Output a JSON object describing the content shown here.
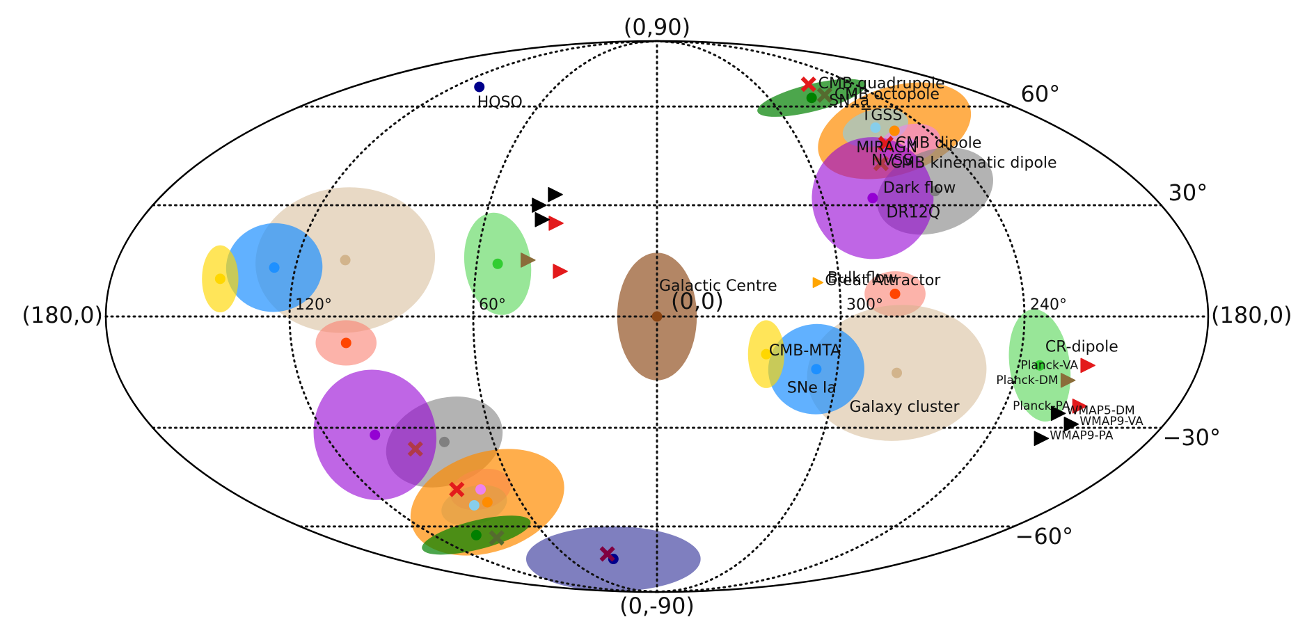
{
  "chart_data": {
    "type": "scatter",
    "projection": "mollweide",
    "coordinate_system": "galactic (l, b) degrees",
    "grid": true,
    "meridian_labels": [
      "240°",
      "300°",
      "(0,0)",
      "60°",
      "120°"
    ],
    "parallel_labels": [
      "60°",
      "30°",
      "−30°",
      "−60°"
    ],
    "edge_labels": {
      "top": "(0,90)",
      "bottom": "(0,-90)",
      "left": "(180,0)",
      "right": "(180,0)"
    },
    "regions": [
      {
        "id": "miragn",
        "label": "MIRAGN",
        "color": "#ff8c00",
        "l": 255,
        "b": 52,
        "rl": 35,
        "rb": 15,
        "rot": -18,
        "alpha": 0.7
      },
      {
        "id": "sn1a-n",
        "label": "SN1a",
        "color": "#008000",
        "l": 277,
        "b": 63,
        "rl": 30,
        "rb": 5,
        "rot": -14,
        "alpha": 0.7
      },
      {
        "id": "tgss-n",
        "label": "TGSS",
        "color": "#87ceeb",
        "l": 262,
        "b": 53,
        "rl": 15,
        "rb": 6,
        "rot": -14,
        "alpha": 0.6
      },
      {
        "id": "nvss-n",
        "label": "NVSS",
        "color": "#ee82ee",
        "l": 254,
        "b": 48,
        "rl": 13,
        "rb": 6,
        "rot": -14,
        "alpha": 0.6
      },
      {
        "id": "dr12q-n",
        "label": "DR12Q",
        "color": "#808080",
        "l": 258,
        "b": 34,
        "rl": 22,
        "rb": 12,
        "rot": -20,
        "alpha": 0.6
      },
      {
        "id": "darkflow-n",
        "label": "Dark flow",
        "color": "#9400d3",
        "l": 282,
        "b": 32,
        "rl": 22,
        "rb": 18,
        "rot": -20,
        "alpha": 0.6
      },
      {
        "id": "bulkflow",
        "label": "Bulk flow",
        "color": "#fa8072",
        "l": 282,
        "b": 6,
        "rl": 10,
        "rb": 6,
        "rot": 0,
        "alpha": 0.6
      },
      {
        "id": "cr-dipole",
        "label": "CR-dipole",
        "color": "#32cd32",
        "l": 233,
        "b": -13,
        "rl": 10,
        "rb": 15,
        "rot": -8,
        "alpha": 0.5
      },
      {
        "id": "galaxy-cluster",
        "label": "Galaxy cluster",
        "color": "#d2b48c",
        "l": 280,
        "b": -15,
        "rl": 30,
        "rb": 18,
        "rot": -6,
        "alpha": 0.5
      },
      {
        "id": "sne-ia",
        "label": "SNe Ia",
        "color": "#1e90ff",
        "l": 307,
        "b": -14,
        "rl": 16,
        "rb": 12,
        "rot": -6,
        "alpha": 0.7
      },
      {
        "id": "cmb-mta",
        "label": "CMB-MTA",
        "color": "#ffd700",
        "l": 324,
        "b": -10,
        "rl": 6,
        "rb": 9,
        "rot": 0,
        "alpha": 0.65
      },
      {
        "id": "galactic-centre",
        "label": "Galactic Centre",
        "color": "#8b4513",
        "l": 0,
        "b": 0,
        "rl": 13,
        "rb": 17,
        "rot": 0,
        "alpha": 0.65
      },
      {
        "id": "cr-dipole-s",
        "label": "",
        "color": "#32cd32",
        "l": 53,
        "b": 14,
        "rl": 11,
        "rb": 14,
        "rot": -8,
        "alpha": 0.5
      },
      {
        "id": "galaxy-cluster-s",
        "label": "",
        "color": "#d2b48c",
        "l": 104,
        "b": 15,
        "rl": 30,
        "rb": 20,
        "rot": -6,
        "alpha": 0.5
      },
      {
        "id": "sne-ia-s",
        "label": "",
        "color": "#1e90ff",
        "l": 127,
        "b": 13,
        "rl": 16,
        "rb": 12,
        "rot": -6,
        "alpha": 0.7
      },
      {
        "id": "cmb-mta-s",
        "label": "",
        "color": "#ffd700",
        "l": 144,
        "b": 10,
        "rl": 6,
        "rb": 9,
        "rot": 0,
        "alpha": 0.65
      },
      {
        "id": "bulkflow-s",
        "label": "",
        "color": "#fa8072",
        "l": 102,
        "b": -7,
        "rl": 10,
        "rb": 6,
        "rot": 0,
        "alpha": 0.6
      },
      {
        "id": "dr12q-s",
        "label": "",
        "color": "#808080",
        "l": 78,
        "b": -34,
        "rl": 22,
        "rb": 12,
        "rot": -20,
        "alpha": 0.6
      },
      {
        "id": "darkflow-s",
        "label": "",
        "color": "#9400d3",
        "l": 102,
        "b": -32,
        "rl": 22,
        "rb": 18,
        "rot": -20,
        "alpha": 0.6
      },
      {
        "id": "nvss-s",
        "label": "",
        "color": "#ee82ee",
        "l": 74,
        "b": -48,
        "rl": 13,
        "rb": 6,
        "rot": -14,
        "alpha": 0.6
      },
      {
        "id": "tgss-s",
        "label": "",
        "color": "#87ceeb",
        "l": 82,
        "b": -53,
        "rl": 15,
        "rb": 6,
        "rot": -14,
        "alpha": 0.6
      },
      {
        "id": "miragn-s",
        "label": "",
        "color": "#ff8c00",
        "l": 75,
        "b": -52,
        "rl": 35,
        "rb": 15,
        "rot": -18,
        "alpha": 0.7
      },
      {
        "id": "sn1a-s",
        "label": "",
        "color": "#008000",
        "l": 97,
        "b": -63,
        "rl": 30,
        "rb": 5,
        "rot": -14,
        "alpha": 0.7
      },
      {
        "id": "hqso-s",
        "label": "",
        "color": "#000080",
        "l": 30,
        "b": -72,
        "rl": 60,
        "rb": 12,
        "rot": 0,
        "alpha": 0.5
      }
    ],
    "points": [
      {
        "label": "HQSO",
        "color": "#00008b",
        "l": 105,
        "b": 67
      },
      {
        "label": "",
        "color": "#00008b",
        "l": 30,
        "b": -72
      },
      {
        "label": "",
        "color": "#ff8c00",
        "l": 255,
        "b": 52
      },
      {
        "label": "",
        "color": "#008000",
        "l": 277,
        "b": 63
      },
      {
        "label": "",
        "color": "#87ceeb",
        "l": 262,
        "b": 53
      },
      {
        "label": "",
        "color": "#ee82ee",
        "l": 254,
        "b": 48
      },
      {
        "label": "",
        "color": "#808080",
        "l": 258,
        "b": 34
      },
      {
        "label": "",
        "color": "#9400d3",
        "l": 282,
        "b": 32
      },
      {
        "label": "",
        "color": "#ff4500",
        "l": 282,
        "b": 6
      },
      {
        "label": "",
        "color": "#32cd32",
        "l": 233,
        "b": -13
      },
      {
        "label": "",
        "color": "#d2b48c",
        "l": 280,
        "b": -15
      },
      {
        "label": "",
        "color": "#1e90ff",
        "l": 307,
        "b": -14
      },
      {
        "label": "",
        "color": "#ffd700",
        "l": 324,
        "b": -10
      },
      {
        "label": "",
        "color": "#8b4513",
        "l": 0,
        "b": 0
      },
      {
        "label": "",
        "color": "#32cd32",
        "l": 53,
        "b": 14
      },
      {
        "label": "",
        "color": "#d2b48c",
        "l": 104,
        "b": 15
      },
      {
        "label": "",
        "color": "#1e90ff",
        "l": 127,
        "b": 13
      },
      {
        "label": "",
        "color": "#ffd700",
        "l": 144,
        "b": 10
      },
      {
        "label": "",
        "color": "#ff4500",
        "l": 102,
        "b": -7
      },
      {
        "label": "",
        "color": "#808080",
        "l": 78,
        "b": -34
      },
      {
        "label": "",
        "color": "#9400d3",
        "l": 102,
        "b": -32
      },
      {
        "label": "",
        "color": "#ee82ee",
        "l": 74,
        "b": -48
      },
      {
        "label": "",
        "color": "#87ceeb",
        "l": 82,
        "b": -53
      },
      {
        "label": "",
        "color": "#ff8c00",
        "l": 75,
        "b": -52
      },
      {
        "label": "",
        "color": "#008000",
        "l": 97,
        "b": -63
      }
    ],
    "crosses": [
      {
        "label": "CMB quadrupole",
        "color": "#e31a1c",
        "l": 268,
        "b": 68
      },
      {
        "label": "CMB octopole",
        "color": "#556b2f",
        "l": 268,
        "b": 64
      },
      {
        "label": "CMB dipole",
        "color": "#e31a1c",
        "l": 264,
        "b": 48
      },
      {
        "label": "CMB kinematic dipole",
        "color": "#b03a48",
        "l": 272,
        "b": 42
      },
      {
        "label": "",
        "color": "#e31a1c",
        "l": 84,
        "b": -48
      },
      {
        "label": "",
        "color": "#b03a48",
        "l": 90,
        "b": -36
      },
      {
        "label": "",
        "color": "#556b2f",
        "l": 88,
        "b": -64
      },
      {
        "label": "",
        "color": "#800040",
        "l": 32,
        "b": -70
      }
    ],
    "markers": [
      {
        "label": "Great Attractor",
        "color": "#ffa500",
        "l": 307,
        "b": 9,
        "small": true
      },
      {
        "label": "Planck-VA",
        "color": "#e31a1c",
        "l": 217,
        "b": -13
      },
      {
        "label": "Planck-DM",
        "color": "#8b6d3a",
        "l": 222,
        "b": -17
      },
      {
        "label": "Planck-PA",
        "color": "#e31a1c",
        "l": 214,
        "b": -24
      },
      {
        "label": "WMAP5-DM",
        "color": "#000000",
        "l": 220,
        "b": -26
      },
      {
        "label": "WMAP9-VA",
        "color": "#000000",
        "l": 213,
        "b": -29
      },
      {
        "label": "WMAP9-PA",
        "color": "#000000",
        "l": 220,
        "b": -33
      },
      {
        "label": "",
        "color": "#000000",
        "l": 37,
        "b": 33
      },
      {
        "label": "",
        "color": "#000000",
        "l": 42,
        "b": 30
      },
      {
        "label": "",
        "color": "#e31a1c",
        "l": 35,
        "b": 25
      },
      {
        "label": "",
        "color": "#000000",
        "l": 40,
        "b": 26
      },
      {
        "label": "",
        "color": "#8b6d3a",
        "l": 43,
        "b": 15
      },
      {
        "label": "",
        "color": "#e31a1c",
        "l": 32,
        "b": 12
      }
    ]
  }
}
